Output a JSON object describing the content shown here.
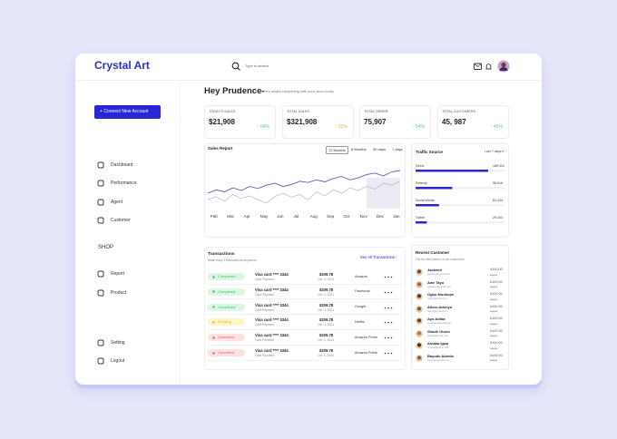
{
  "header": {
    "brand": "Crystal Art",
    "search_placeholder": "Type to search"
  },
  "sidebar": {
    "button": "Connect New Account",
    "nav": [
      "Dashboard",
      "Performance",
      "Agent",
      "Customer"
    ],
    "section": "SHOP",
    "shop_nav": [
      "Report",
      "Product"
    ],
    "bottom_nav": [
      "Setting",
      "Logout"
    ]
  },
  "greeting": {
    "title": "Hey Prudence-",
    "subtitle": "here's what's happening with your store today"
  },
  "stats": [
    {
      "label": "TODAY'S SALES",
      "value": "$21,908",
      "change": "↑ 64%"
    },
    {
      "label": "TOTAL SALES",
      "value": "$321,908",
      "change": "↑ 23%"
    },
    {
      "label": "TOTAL ORDER",
      "value": "75,907",
      "change": "↑ 54%"
    },
    {
      "label": "TOTAL CUSTOMERS",
      "value": "45, 987",
      "change": "↑ 45%"
    }
  ],
  "sales_report": {
    "title": "Sales Report",
    "tabs": [
      "12 Months",
      "6 Months",
      "30 days",
      "7 days"
    ],
    "months": [
      "Feb",
      "Mar",
      "Apr",
      "May",
      "Jun",
      "Jul",
      "Aug",
      "Sep",
      "Oct",
      "Nov",
      "Dec",
      "Jan"
    ],
    "series": [
      {
        "color": "#5b5fc7",
        "values": [
          40,
          45,
          42,
          48,
          44,
          50,
          47,
          52,
          55,
          50,
          53,
          58,
          56,
          60,
          57,
          62,
          65,
          60,
          63,
          68,
          70,
          66,
          72,
          74
        ]
      },
      {
        "color": "#b8b4cc",
        "values": [
          30,
          35,
          28,
          38,
          32,
          36,
          30,
          25,
          35,
          40,
          34,
          38,
          30,
          42,
          36,
          45,
          40,
          48,
          44,
          50,
          46,
          55,
          52,
          58
        ]
      }
    ]
  },
  "traffic": {
    "title": "Traffic Source",
    "period": "Last 7 days ▾",
    "items": [
      {
        "label": "Direct",
        "value": 189324,
        "value_label": "189,324"
      },
      {
        "label": "Referral",
        "value": 95616,
        "value_label": "95,616"
      },
      {
        "label": "Social Media",
        "value": 61124,
        "value_label": "61,124"
      },
      {
        "label": "Twitter",
        "value": 29344,
        "value_label": "29,344"
      }
    ]
  },
  "transactions": {
    "title": "Transactions",
    "subtitle": "Make easy 3 transactions anywhere",
    "link": "See All Transactions  ›",
    "rows": [
      {
        "status": "Completed",
        "card": "Visa card **** 3344",
        "method": "Card Payment",
        "amount": "$209.78",
        "date": "Oct. 4, 2024",
        "merchant": "Amazon"
      },
      {
        "status": "Completed",
        "card": "Visa card **** 3344",
        "method": "Card Payment",
        "amount": "$209.78",
        "date": "Oct. 4, 2024",
        "merchant": "Facebook"
      },
      {
        "status": "Completed",
        "card": "Visa card **** 3344",
        "method": "Card Payment",
        "amount": "$209.78",
        "date": "Oct. 4, 2024",
        "merchant": "Google"
      },
      {
        "status": "Pending",
        "card": "Visa card **** 3344",
        "method": "Card Payment",
        "amount": "$209.78",
        "date": "Oct. 4, 2024",
        "merchant": "Netflix"
      },
      {
        "status": "Cancelled",
        "card": "Visa card **** 3344",
        "method": "Card Payment",
        "amount": "$209.78",
        "date": "Oct. 4, 2024",
        "merchant": "Amazon Prime"
      },
      {
        "status": "Cancelled",
        "card": "Visa card **** 3344",
        "method": "Card Payment",
        "amount": "$209.78",
        "date": "Oct. 4, 2024",
        "merchant": "Amazon Prime"
      }
    ]
  },
  "customers": {
    "title": "Recent Customer",
    "subtitle": "Get the last feature of our customers",
    "rows": [
      {
        "name": "Jackson",
        "email": "jackson@gmail.com",
        "amount": "#100.00",
        "city": "Lagos"
      },
      {
        "name": "Awe Tayo",
        "email": "awetayo@gmail.com",
        "amount": "#100.00",
        "city": "Lagos"
      },
      {
        "name": "Ogbu Mookope",
        "email": "ogbu@gmail.com",
        "amount": "#100.00",
        "city": "Lagos"
      },
      {
        "name": "Alloru Adenyo",
        "email": "alloru@gmail.com",
        "amount": "#100.00",
        "city": "Lagos"
      },
      {
        "name": "Ayo Adiba",
        "email": "ayoadiba@gmail.com",
        "amount": "#100.00",
        "city": "Lagos"
      },
      {
        "name": "Shade Olurin",
        "email": "shade@gmail.com",
        "amount": "#100.00",
        "city": "Lagos"
      },
      {
        "name": "Amaka Igwu",
        "email": "amaka@gmail.com",
        "amount": "#100.00",
        "city": "Lagos"
      },
      {
        "name": "Bayode Adenla",
        "email": "bayode@gmail.com",
        "amount": "#100.00",
        "city": "Lagos"
      }
    ]
  }
}
